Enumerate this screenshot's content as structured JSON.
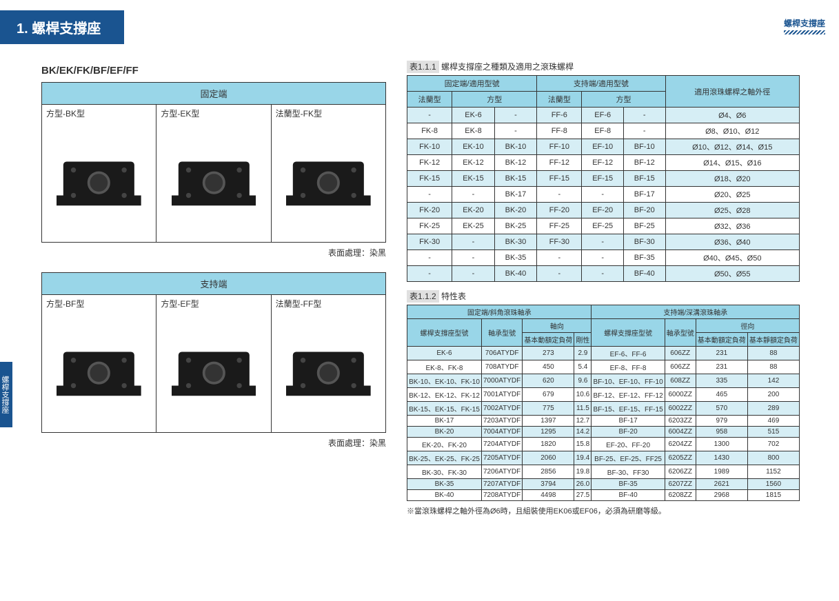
{
  "header": {
    "topRight": "螺桿支撐座",
    "chapter": "1. 螺桿支撐座",
    "sideTab": "螺桿支撐座",
    "subhead": "BK/EK/FK/BF/EF/FF"
  },
  "panelA": {
    "title": "固定端",
    "items": [
      {
        "label": "方型-BK型"
      },
      {
        "label": "方型-EK型"
      },
      {
        "label": "法蘭型-FK型"
      }
    ],
    "foot": "表面處理：染黑"
  },
  "panelB": {
    "title": "支持端",
    "items": [
      {
        "label": "方型-BF型"
      },
      {
        "label": "方型-EF型"
      },
      {
        "label": "法蘭型-FF型"
      }
    ],
    "foot": "表面處理：染黑"
  },
  "table1": {
    "num": "表1.1.1",
    "caption": "螺桿支撐座之種類及適用之滾珠螺桿",
    "headA": "固定端/適用型號",
    "headB": "支持端/適用型號",
    "headC": "適用滾珠螺桿之軸外徑",
    "sub": [
      "法蘭型",
      "方型",
      "",
      "法蘭型",
      "方型",
      ""
    ],
    "rows": [
      [
        "-",
        "EK-6",
        "-",
        "FF-6",
        "EF-6",
        "-",
        "Ø4、Ø6"
      ],
      [
        "FK-8",
        "EK-8",
        "-",
        "FF-8",
        "EF-8",
        "-",
        "Ø8、Ø10、Ø12"
      ],
      [
        "FK-10",
        "EK-10",
        "BK-10",
        "FF-10",
        "EF-10",
        "BF-10",
        "Ø10、Ø12、Ø14、Ø15"
      ],
      [
        "FK-12",
        "EK-12",
        "BK-12",
        "FF-12",
        "EF-12",
        "BF-12",
        "Ø14、Ø15、Ø16"
      ],
      [
        "FK-15",
        "EK-15",
        "BK-15",
        "FF-15",
        "EF-15",
        "BF-15",
        "Ø18、Ø20"
      ],
      [
        "-",
        "-",
        "BK-17",
        "-",
        "-",
        "BF-17",
        "Ø20、Ø25"
      ],
      [
        "FK-20",
        "EK-20",
        "BK-20",
        "FF-20",
        "EF-20",
        "BF-20",
        "Ø25、Ø28"
      ],
      [
        "FK-25",
        "EK-25",
        "BK-25",
        "FF-25",
        "EF-25",
        "BF-25",
        "Ø32、Ø36"
      ],
      [
        "FK-30",
        "-",
        "BK-30",
        "FF-30",
        "-",
        "BF-30",
        "Ø36、Ø40"
      ],
      [
        "-",
        "-",
        "BK-35",
        "-",
        "-",
        "BF-35",
        "Ø40、Ø45、Ø50"
      ],
      [
        "-",
        "-",
        "BK-40",
        "-",
        "-",
        "BF-40",
        "Ø50、Ø55"
      ]
    ]
  },
  "table2": {
    "num": "表1.1.2",
    "caption": "特性表",
    "headA": "固定端/斜角滾珠軸承",
    "headB": "支持端/深溝滾珠軸承",
    "h2a": "螺桿支撐座型號",
    "h2b": "軸承型號",
    "h2c": "軸向",
    "h2c1": "基本動額定負荷",
    "h2c2": "剛性",
    "h2d": "螺桿支撐座型號",
    "h2e": "軸承型號",
    "h2f": "徑向",
    "h2f1": "基本動額定負荷",
    "h2f2": "基本靜額定負荷",
    "rows": [
      [
        "EK-6",
        "706ATYDF",
        "273",
        "2.9",
        "EF-6、FF-6",
        "606ZZ",
        "231",
        "88"
      ],
      [
        "EK-8、FK-8",
        "708ATYDF",
        "450",
        "5.4",
        "EF-8、FF-8",
        "606ZZ",
        "231",
        "88"
      ],
      [
        "BK-10、EK-10、FK-10",
        "7000ATYDF",
        "620",
        "9.6",
        "BF-10、EF-10、FF-10",
        "608ZZ",
        "335",
        "142"
      ],
      [
        "BK-12、EK-12、FK-12",
        "7001ATYDF",
        "679",
        "10.6",
        "BF-12、EF-12、FF-12",
        "6000ZZ",
        "465",
        "200"
      ],
      [
        "BK-15、EK-15、FK-15",
        "7002ATYDF",
        "775",
        "11.5",
        "BF-15、EF-15、FF-15",
        "6002ZZ",
        "570",
        "289"
      ],
      [
        "BK-17",
        "7203ATYDF",
        "1397",
        "12.7",
        "BF-17",
        "6203ZZ",
        "979",
        "469"
      ],
      [
        "BK-20",
        "7004ATYDF",
        "1295",
        "14.2",
        "BF-20",
        "6004ZZ",
        "958",
        "515"
      ],
      [
        "EK-20、FK-20",
        "7204ATYDF",
        "1820",
        "15.8",
        "EF-20、FF-20",
        "6204ZZ",
        "1300",
        "702"
      ],
      [
        "BK-25、EK-25、FK-25",
        "7205ATYDF",
        "2060",
        "19.4",
        "BF-25、EF-25、FF25",
        "6205ZZ",
        "1430",
        "800"
      ],
      [
        "BK-30、FK-30",
        "7206ATYDF",
        "2856",
        "19.8",
        "BF-30、FF30",
        "6206ZZ",
        "1989",
        "1152"
      ],
      [
        "BK-35",
        "7207ATYDF",
        "3794",
        "26.0",
        "BF-35",
        "6207ZZ",
        "2621",
        "1560"
      ],
      [
        "BK-40",
        "7208ATYDF",
        "4498",
        "27.5",
        "BF-40",
        "6208ZZ",
        "2968",
        "1815"
      ]
    ],
    "note": "※當滾珠螺桿之軸外徑為Ø6時，且組裝使用EK06或EF06，必須為研磨等級。"
  },
  "colors": {
    "accent": "#99d6e8",
    "brand": "#1a5490"
  }
}
